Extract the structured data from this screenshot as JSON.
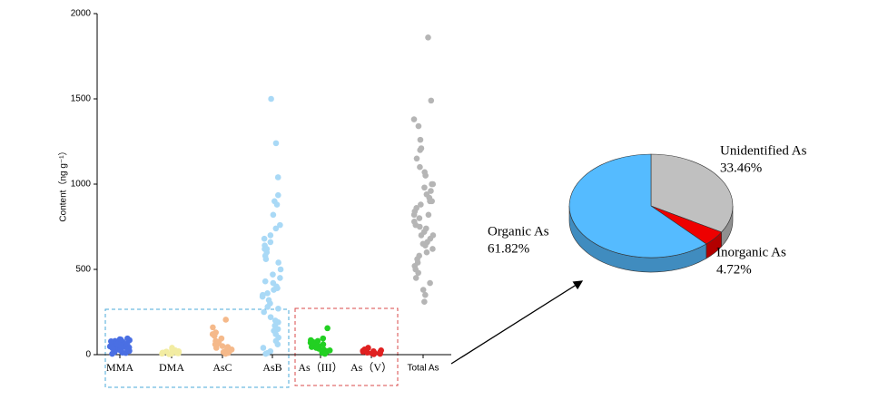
{
  "chart_data": [
    {
      "type": "strip",
      "y_label": "Content（ng g⁻¹）",
      "categories": [
        "MMA",
        "DMA",
        "AsC",
        "AsB",
        "As（III）",
        "As（V）",
        "Total As"
      ],
      "colors": [
        "#4a6fe3",
        "#f2eca2",
        "#f5b98a",
        "#a9d9f6",
        "#22d022",
        "#e02020",
        "#b5b5b5"
      ],
      "values": [
        [
          10,
          20,
          30,
          40,
          50,
          60,
          70,
          80,
          90,
          25,
          35,
          45,
          55,
          65,
          75,
          85,
          15,
          5,
          38,
          48,
          58,
          68,
          78,
          88,
          95,
          12,
          22,
          32,
          42,
          52
        ],
        [
          5,
          10,
          15,
          20,
          25,
          30,
          40,
          8,
          12,
          3,
          18,
          6
        ],
        [
          205,
          160,
          130,
          110,
          95,
          80,
          65,
          50,
          40,
          30,
          25,
          20,
          15,
          10,
          5,
          45,
          60,
          75,
          120
        ],
        [
          1500,
          1240,
          1040,
          935,
          900,
          880,
          820,
          760,
          740,
          700,
          680,
          660,
          640,
          620,
          600,
          580,
          540,
          500,
          470,
          450,
          420,
          400,
          390,
          380,
          360,
          340,
          320,
          300,
          280,
          250,
          220,
          190,
          170,
          140,
          120,
          100,
          80,
          60,
          40,
          20,
          10,
          5,
          620,
          560,
          430,
          350,
          270,
          200,
          150
        ],
        [
          155,
          95,
          80,
          70,
          60,
          50,
          45,
          40,
          35,
          30,
          25,
          20,
          15,
          10,
          5,
          60,
          75,
          55,
          65,
          85
        ],
        [
          40,
          30,
          25,
          20,
          15,
          10,
          8,
          5,
          3,
          12,
          18,
          22
        ],
        [
          1860,
          1490,
          1380,
          1340,
          1260,
          1210,
          1200,
          1150,
          1100,
          1070,
          1050,
          1000,
          980,
          960,
          940,
          920,
          900,
          880,
          860,
          840,
          820,
          800,
          780,
          760,
          740,
          720,
          700,
          680,
          660,
          640,
          620,
          600,
          580,
          560,
          540,
          520,
          500,
          480,
          450,
          420,
          380,
          350,
          310,
          1000,
          900,
          820,
          750,
          700,
          650
        ]
      ],
      "ylim": [
        0,
        2000
      ],
      "yticks": [
        0,
        500,
        1000,
        1500,
        2000
      ]
    },
    {
      "type": "pie",
      "categories": [
        "Unidentified As",
        "Inorganic As",
        "Organic As"
      ],
      "values": [
        33.46,
        4.72,
        61.82
      ],
      "value_labels": [
        "33.46%",
        "4.72%",
        "61.82%"
      ],
      "colors": [
        "#c0c0c0",
        "#ee0000",
        "#55bbff"
      ]
    }
  ]
}
